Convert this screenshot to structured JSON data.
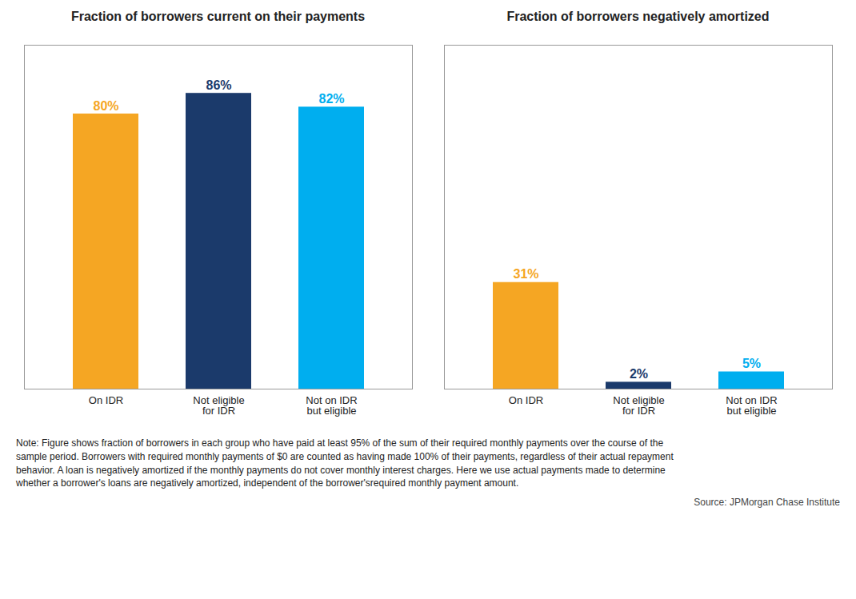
{
  "chart_data": [
    {
      "type": "bar",
      "title": "Fraction of borrowers current on their payments",
      "categories": [
        "On IDR",
        "Not eligible\nfor IDR",
        "Not on IDR\nbut eligible"
      ],
      "values": [
        80,
        86,
        82
      ],
      "value_labels": [
        "80%",
        "86%",
        "82%"
      ],
      "colors": [
        "#F5A623",
        "#1B3A6B",
        "#00AEEF"
      ],
      "ylim": [
        0,
        100
      ],
      "grid": false,
      "data_labels": true,
      "tick_labels": "x"
    },
    {
      "type": "bar",
      "title": "Fraction of borrowers negatively amortized",
      "categories": [
        "On IDR",
        "Not eligible\nfor IDR",
        "Not on IDR\nbut eligible"
      ],
      "values": [
        31,
        2,
        5
      ],
      "value_labels": [
        "31%",
        "2%",
        "5%"
      ],
      "colors": [
        "#F5A623",
        "#1B3A6B",
        "#00AEEF"
      ],
      "ylim": [
        0,
        100
      ],
      "grid": false,
      "data_labels": true,
      "tick_labels": "x"
    }
  ],
  "notes": [
    "Note: Figure shows fraction of borrowers in each group who have paid at least 95% of the sum of their required monthly payments over the course of the",
    "sample period. Borrowers with required monthly payments of $0 are counted as having made 100% of their payments, regardless of their actual repayment",
    "behavior. A loan is negatively amortized if the monthly payments do not cover monthly interest charges. Here we use actual payments made to determine",
    "whether a borrower's loans are negatively amortized, independent of the borrower'srequired monthly payment amount."
  ],
  "source": "Source: JPMorgan Chase Institute"
}
